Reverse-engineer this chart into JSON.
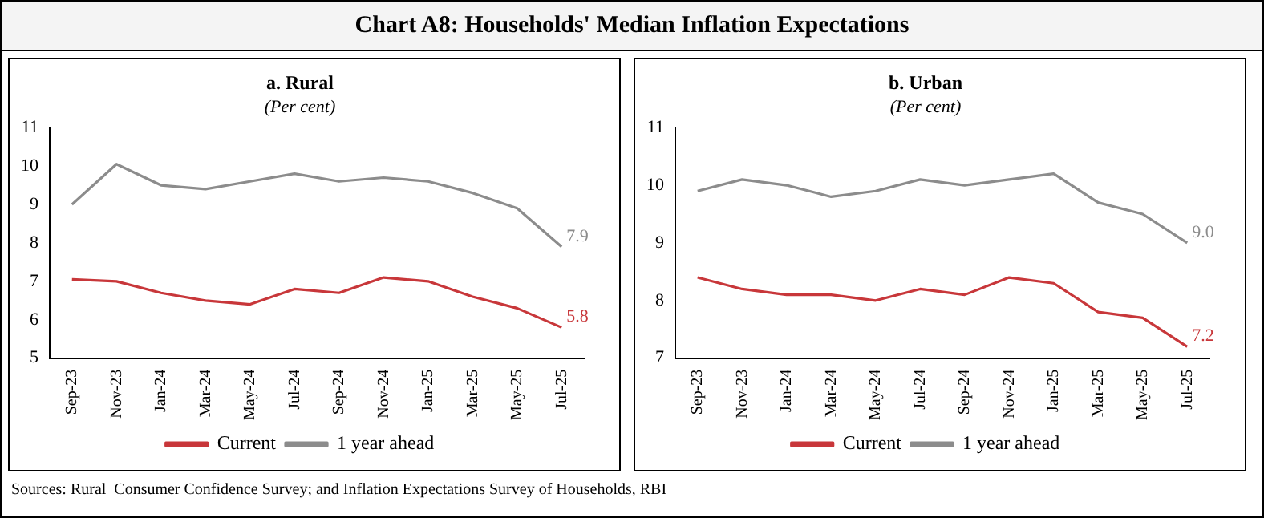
{
  "chart_data": [
    {
      "type": "line",
      "title": "a. Rural",
      "subtitle": "(Per cent)",
      "annotations": [
        "Chart A8: Households' Median Inflation Expectations",
        "Sources: Rural  Consumer Confidence Survey; and Inflation Expectations Survey of Households, RBI"
      ],
      "categories": [
        "Sep-23",
        "Nov-23",
        "Jan-24",
        "Mar-24",
        "May-24",
        "Jul-24",
        "Sep-24",
        "Nov-24",
        "Jan-25",
        "Mar-25",
        "May-25",
        "Jul-25"
      ],
      "series": [
        {
          "name": "Current",
          "color": "#c8373a",
          "values": [
            7.05,
            7.0,
            6.7,
            6.5,
            6.4,
            6.8,
            6.7,
            7.1,
            7.0,
            6.6,
            6.3,
            5.8
          ],
          "value_labels": [
            null,
            null,
            null,
            null,
            null,
            null,
            null,
            null,
            null,
            null,
            null,
            "5.8"
          ]
        },
        {
          "name": "1 year ahead",
          "color": "#8c8c8c",
          "values": [
            9.0,
            10.05,
            9.5,
            9.4,
            9.6,
            9.8,
            9.6,
            9.7,
            9.6,
            9.3,
            8.9,
            7.9
          ],
          "value_labels": [
            null,
            null,
            null,
            null,
            null,
            null,
            null,
            null,
            null,
            null,
            null,
            "7.9"
          ]
        }
      ],
      "ylim": [
        5,
        11
      ],
      "yticks": [
        5,
        6,
        7,
        8,
        9,
        10,
        11
      ],
      "grid": false,
      "legend": "bottom",
      "marker": "none",
      "line_style": "solid"
    },
    {
      "type": "line",
      "title": "b. Urban",
      "subtitle": "(Per cent)",
      "categories": [
        "Sep-23",
        "Nov-23",
        "Jan-24",
        "Mar-24",
        "May-24",
        "Jul-24",
        "Sep-24",
        "Nov-24",
        "Jan-25",
        "Mar-25",
        "May-25",
        "Jul-25"
      ],
      "series": [
        {
          "name": "Current",
          "color": "#c8373a",
          "values": [
            8.4,
            8.2,
            8.1,
            8.1,
            8.0,
            8.2,
            8.1,
            8.4,
            8.3,
            7.8,
            7.7,
            7.2
          ],
          "value_labels": [
            null,
            null,
            null,
            null,
            null,
            null,
            null,
            null,
            null,
            null,
            null,
            "7.2"
          ]
        },
        {
          "name": "1 year ahead",
          "color": "#8c8c8c",
          "values": [
            9.9,
            10.1,
            10.0,
            9.8,
            9.9,
            10.1,
            10.0,
            10.1,
            10.2,
            9.7,
            9.5,
            9.0
          ],
          "value_labels": [
            null,
            null,
            null,
            null,
            null,
            null,
            null,
            null,
            null,
            null,
            null,
            "9.0"
          ]
        }
      ],
      "ylim": [
        7,
        11
      ],
      "yticks": [
        7,
        8,
        9,
        10,
        11
      ],
      "grid": false,
      "legend": "bottom",
      "marker": "none",
      "line_style": "solid"
    }
  ]
}
